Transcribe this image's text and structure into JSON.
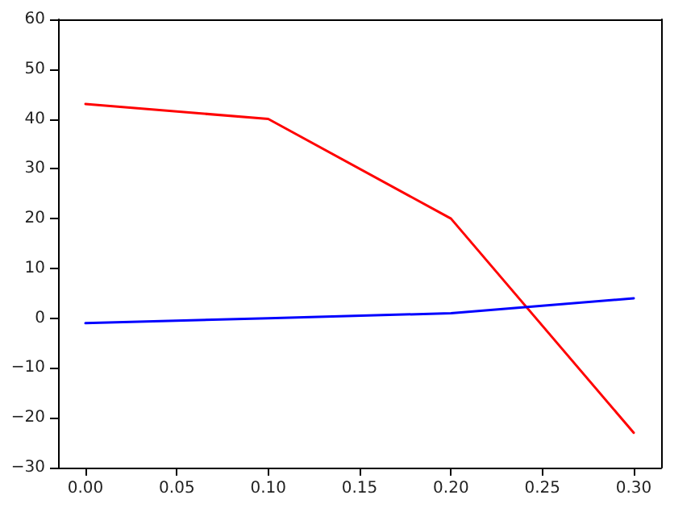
{
  "chart_data": {
    "type": "line",
    "x": [
      0,
      0.1,
      0.2,
      0.3
    ],
    "series": [
      {
        "color": "#ff0000",
        "values": [
          43,
          40,
          20,
          -23
        ]
      },
      {
        "color": "#0000ff",
        "values": [
          -1,
          0,
          1,
          4
        ]
      }
    ],
    "xlim": [
      -0.015,
      0.315
    ],
    "xticks": [
      {
        "value": 0,
        "label": "0.00"
      },
      {
        "value": 0.05,
        "label": "0.05"
      },
      {
        "value": 0.1,
        "label": "0.10"
      },
      {
        "value": 0.15,
        "label": "0.15"
      },
      {
        "value": 0.2,
        "label": "0.20"
      },
      {
        "value": 0.25,
        "label": "0.25"
      },
      {
        "value": 0.3,
        "label": "0.30"
      }
    ],
    "ylim": [
      -30,
      60
    ],
    "yticks": [
      {
        "value": -30,
        "label": "−30"
      },
      {
        "value": -20,
        "label": "−20"
      },
      {
        "value": -10,
        "label": "−10"
      },
      0,
      10,
      20,
      30,
      40,
      50,
      60
    ],
    "grid": false,
    "marker": "none",
    "line_style": "solid"
  }
}
